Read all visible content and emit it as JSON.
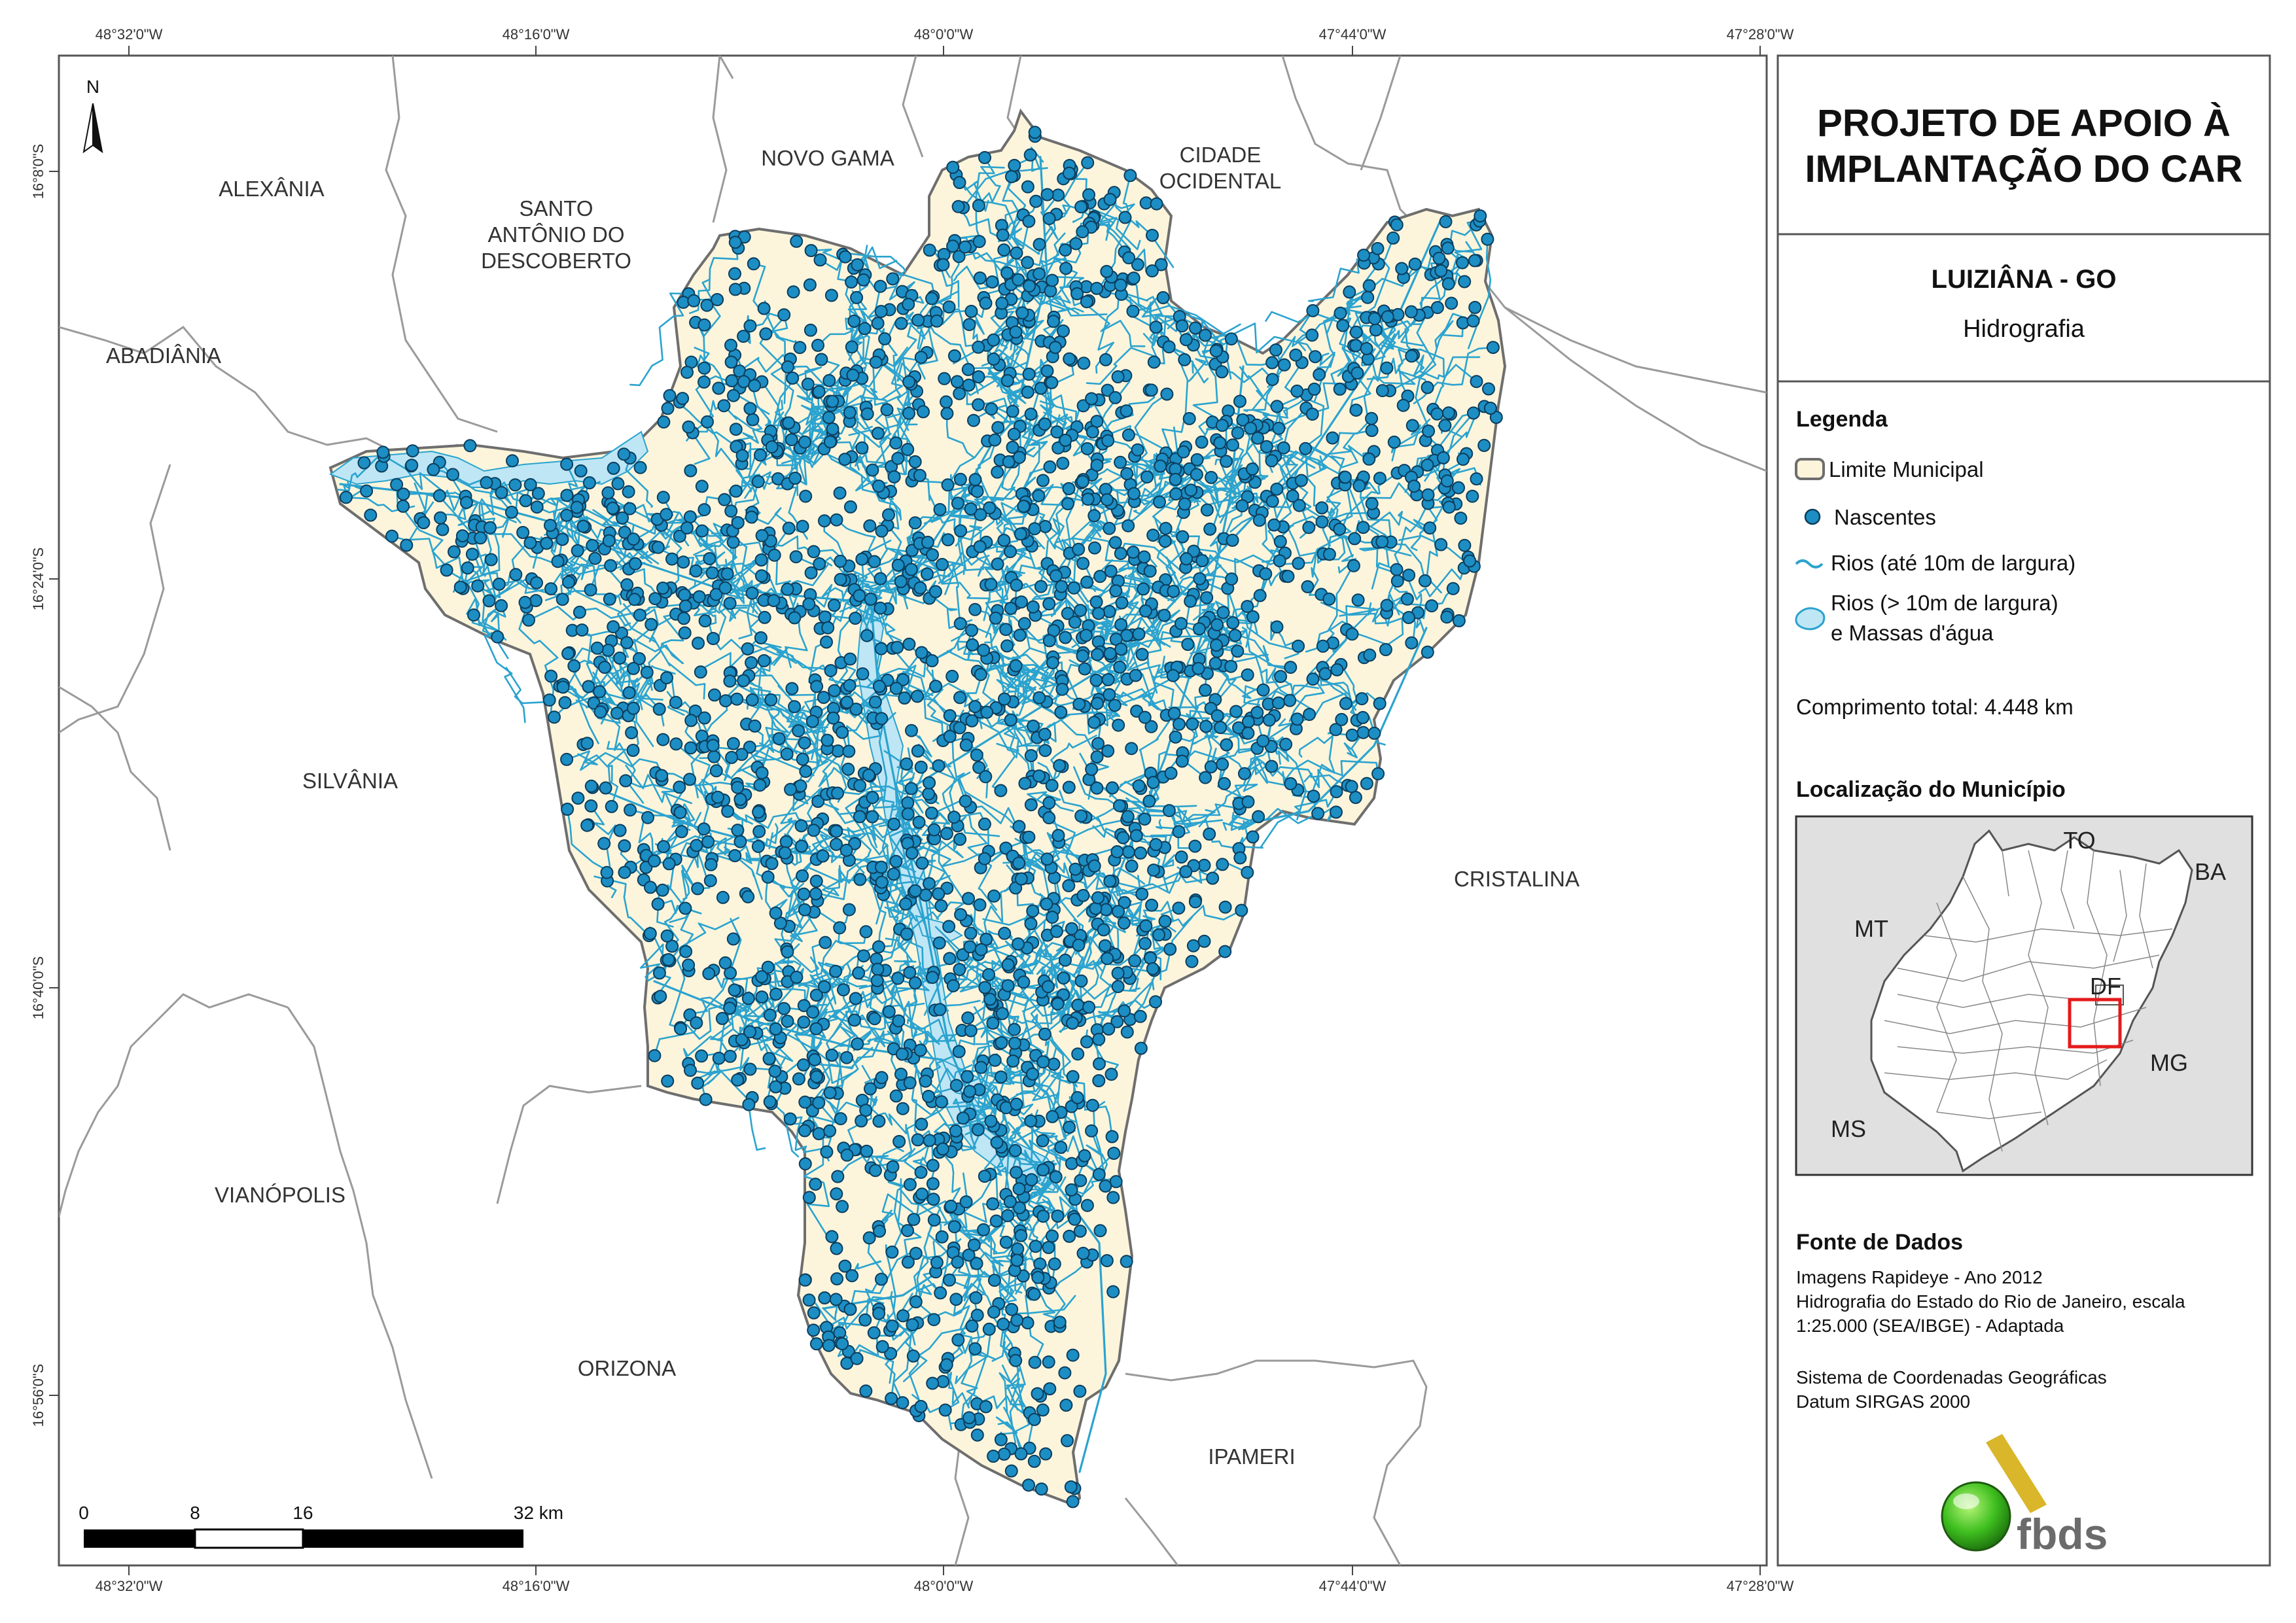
{
  "title": "PROJETO DE APOIO À IMPLANTAÇÃO DO CAR",
  "title_lines": [
    "PROJETO DE APOIO À",
    "IMPLANTAÇÃO DO CAR"
  ],
  "municipality": "LUIZIÂNA - GO",
  "theme": "Hidrografia",
  "legend": {
    "heading": "Legenda",
    "items": [
      {
        "label": "Limite Municipal",
        "icon": "municipal-boundary-swatch"
      },
      {
        "label": "Nascentes",
        "icon": "spring-dot"
      },
      {
        "label": "Rios (até 10m de largura)",
        "icon": "river-line"
      },
      {
        "label": "Rios (> 10m de largura)",
        "label2": "e Massas d'água",
        "icon": "water-body-swatch"
      }
    ],
    "total_length": "Comprimento total: 4.448 km"
  },
  "location": {
    "heading": "Localização do Município",
    "labels": [
      "TO",
      "BA",
      "MT",
      "DF",
      "MG",
      "MS"
    ]
  },
  "sources": {
    "heading": "Fonte de Dados",
    "lines": [
      "Imagens Rapideye - Ano 2012",
      "Hidrografia do Estado do Rio de Janeiro, escala",
      "1:25.000 (SEA/IBGE) - Adaptada",
      "",
      "Sistema de Coordenadas Geográficas",
      "Datum SIRGAS 2000"
    ]
  },
  "logo_text": "fbds",
  "north_label": "N",
  "scale_bar": {
    "labels": [
      "0",
      "8",
      "16",
      "32 km"
    ],
    "ticks_km": [
      0,
      8,
      16,
      32
    ]
  },
  "graticule": {
    "lon_labels": [
      "48°32'0\"W",
      "48°16'0\"W",
      "48°0'0\"W",
      "47°44'0\"W",
      "47°28'0\"W"
    ],
    "lat_labels": [
      "16°8'0\"S",
      "16°24'0\"S",
      "16°40'0\"S",
      "16°56'0\"S"
    ]
  },
  "neighbors": [
    {
      "name": "ALEXÂNIA",
      "lines": [
        "ALEXÂNIA"
      ]
    },
    {
      "name": "SANTO ANTÔNIO DO DESCOBERTO",
      "lines": [
        "SANTO",
        "ANTÔNIO DO",
        "DESCOBERTO"
      ]
    },
    {
      "name": "NOVO GAMA",
      "lines": [
        "NOVO GAMA"
      ]
    },
    {
      "name": "CIDADE OCIDENTAL",
      "lines": [
        "CIDADE",
        "OCIDENTAL"
      ]
    },
    {
      "name": "ABADIÂNIA",
      "lines": [
        "ABADIÂNIA"
      ]
    },
    {
      "name": "SILVÂNIA",
      "lines": [
        "SILVÂNIA"
      ]
    },
    {
      "name": "CRISTALINA",
      "lines": [
        "CRISTALINA"
      ]
    },
    {
      "name": "VIANÓPOLIS",
      "lines": [
        "VIANÓPOLIS"
      ]
    },
    {
      "name": "ORIZONA",
      "lines": [
        "ORIZONA"
      ]
    },
    {
      "name": "IPAMERI",
      "lines": [
        "IPAMERI"
      ]
    }
  ],
  "colors": {
    "municipality_fill": "#fcf5dc",
    "municipality_stroke": "#6e6e6e",
    "river": "#2ba3cf",
    "water_body": "#bfe6f5",
    "spring_fill": "#1c8ec4",
    "spring_stroke": "#0c3d5c",
    "neighbor_boundary": "#9a9a9a",
    "inset_bg": "#e0e0e0",
    "inset_highlight": "#e31a1c"
  }
}
